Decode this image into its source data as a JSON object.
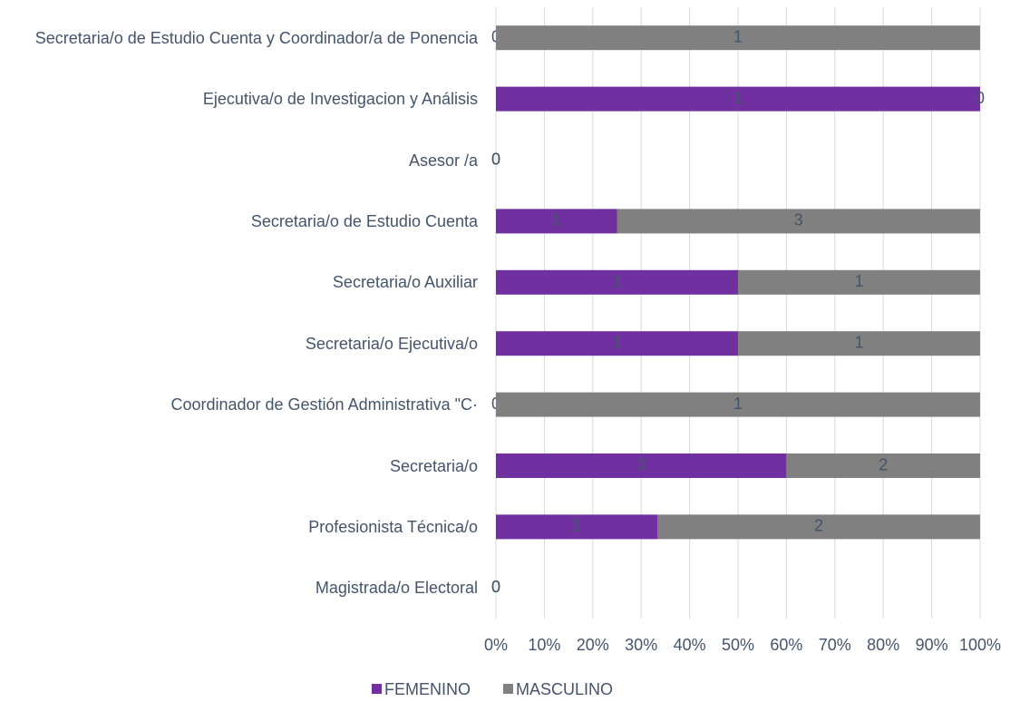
{
  "chart_data": {
    "type": "bar",
    "orientation": "horizontal",
    "stacked": "percent",
    "categories": [
      "Secretaria/o de Estudio Cuenta y Coordinador/a de Ponencia",
      "Ejecutiva/o de Investigacion y Análisis",
      "Asesor /a",
      "Secretaria/o de Estudio Cuenta",
      "Secretaria/o Auxiliar",
      "Secretaria/o Ejecutiva/o",
      "Coordinador de Gestión Administrativa \"C·",
      "Secretaria/o",
      "Profesionista Técnica/o",
      "Magistrada/o Electoral"
    ],
    "series": [
      {
        "name": "FEMENINO",
        "color": "#7030a0",
        "values": [
          0,
          1,
          0,
          1,
          1,
          1,
          0,
          3,
          1,
          0
        ]
      },
      {
        "name": "MASCULINO",
        "color": "#808080",
        "values": [
          1,
          0,
          0,
          3,
          1,
          1,
          1,
          2,
          2,
          0
        ]
      }
    ],
    "xlim": [
      0,
      100
    ],
    "xticks": [
      {
        "value": 0,
        "label": "0%"
      },
      {
        "value": 10,
        "label": "10%"
      },
      {
        "value": 20,
        "label": "20%"
      },
      {
        "value": 30,
        "label": "30%"
      },
      {
        "value": 40,
        "label": "40%"
      },
      {
        "value": 50,
        "label": "50%"
      },
      {
        "value": 60,
        "label": "60%"
      },
      {
        "value": 70,
        "label": "70%"
      },
      {
        "value": 80,
        "label": "80%"
      },
      {
        "value": 90,
        "label": "90%"
      },
      {
        "value": 100,
        "label": "100%"
      }
    ],
    "grid": true,
    "legend": "bottom"
  }
}
